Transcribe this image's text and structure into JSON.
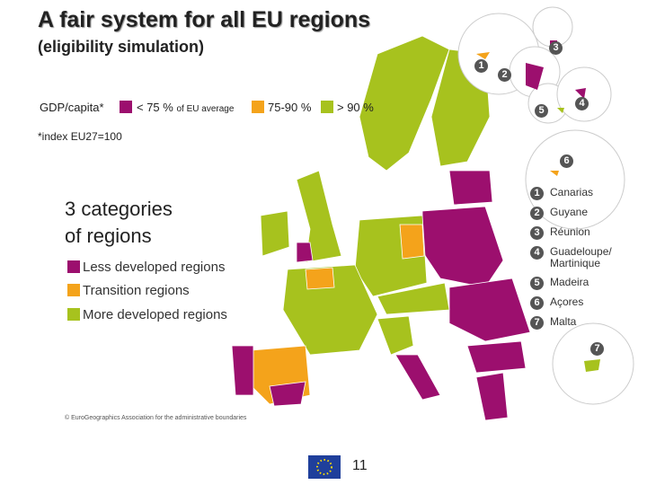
{
  "title": "A fair system for all EU regions",
  "subtitle": "(eligibility simulation)",
  "gdp_label": "GDP/capita*",
  "legend": [
    {
      "label": "< 75 %",
      "detail": "of EU average",
      "color": "#9c0f6e"
    },
    {
      "label": "75-90 %",
      "color": "#f4a31b"
    },
    {
      "label": "> 90 %",
      "color": "#a7c21e"
    }
  ],
  "note": "*index EU27=100",
  "heading": [
    "3 categories",
    "of regions"
  ],
  "categories": [
    "Less developed regions",
    "Transition regions",
    "More developed regions"
  ],
  "outermost": [
    {
      "number": "1",
      "label": "Canarias"
    },
    {
      "number": "2",
      "label": "Guyane"
    },
    {
      "number": "3",
      "label": "Réunion"
    },
    {
      "number": "4",
      "label": "Guadeloupe/ Martinique"
    },
    {
      "number": "5",
      "label": "Madeira"
    },
    {
      "number": "6",
      "label": "Açores"
    },
    {
      "number": "7",
      "label": "Malta"
    }
  ],
  "copyright": "© EuroGeographics Association for the administrative boundaries",
  "page_number": "11"
}
